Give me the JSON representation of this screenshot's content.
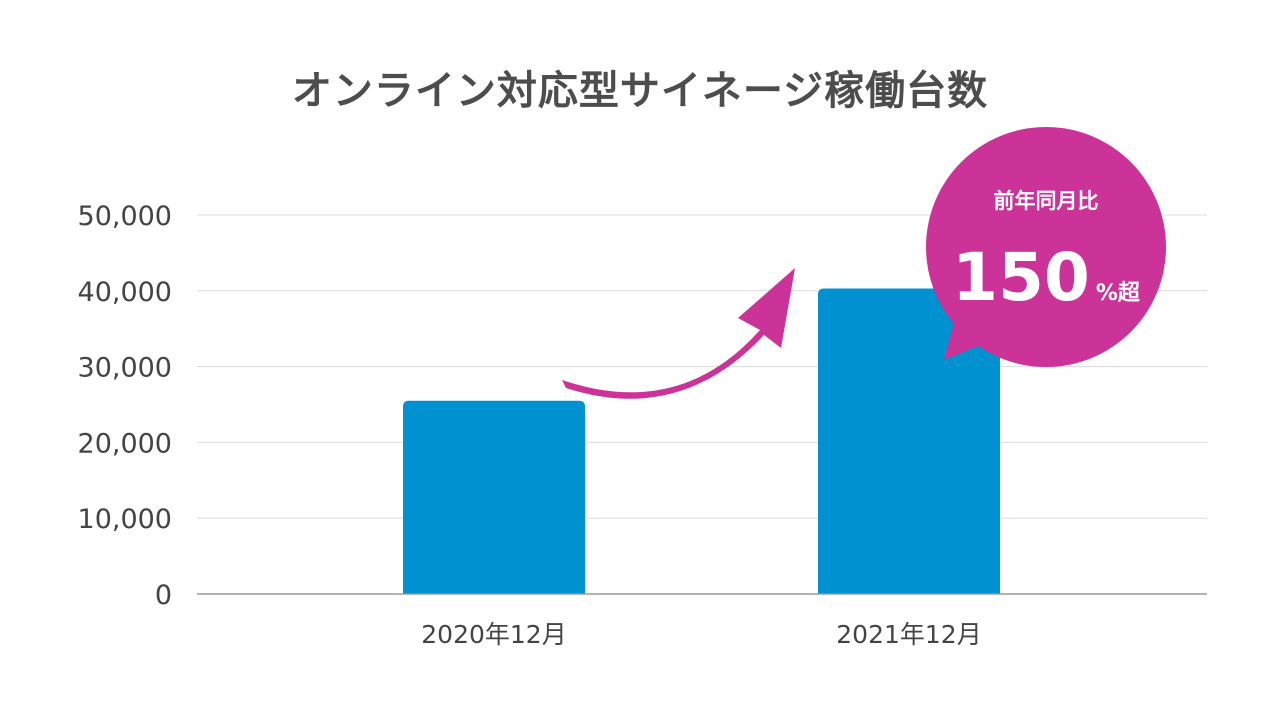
{
  "chart_data": {
    "type": "bar",
    "title": "オンライン対応型サイネージ稼働台数",
    "categories": [
      "2020年12月",
      "2021年12月"
    ],
    "values": [
      25500,
      40300
    ],
    "yticks": [
      "0",
      "10,000",
      "20,000",
      "30,000",
      "40,000",
      "50,000"
    ],
    "ytick_values": [
      0,
      10000,
      20000,
      30000,
      40000,
      50000
    ],
    "ylim": [
      0,
      50000
    ],
    "grid": true,
    "bar_color": "#0091d0",
    "annotation": {
      "label": "前年同月比",
      "value": "150",
      "unit": "%超",
      "color": "#cc3399"
    }
  }
}
